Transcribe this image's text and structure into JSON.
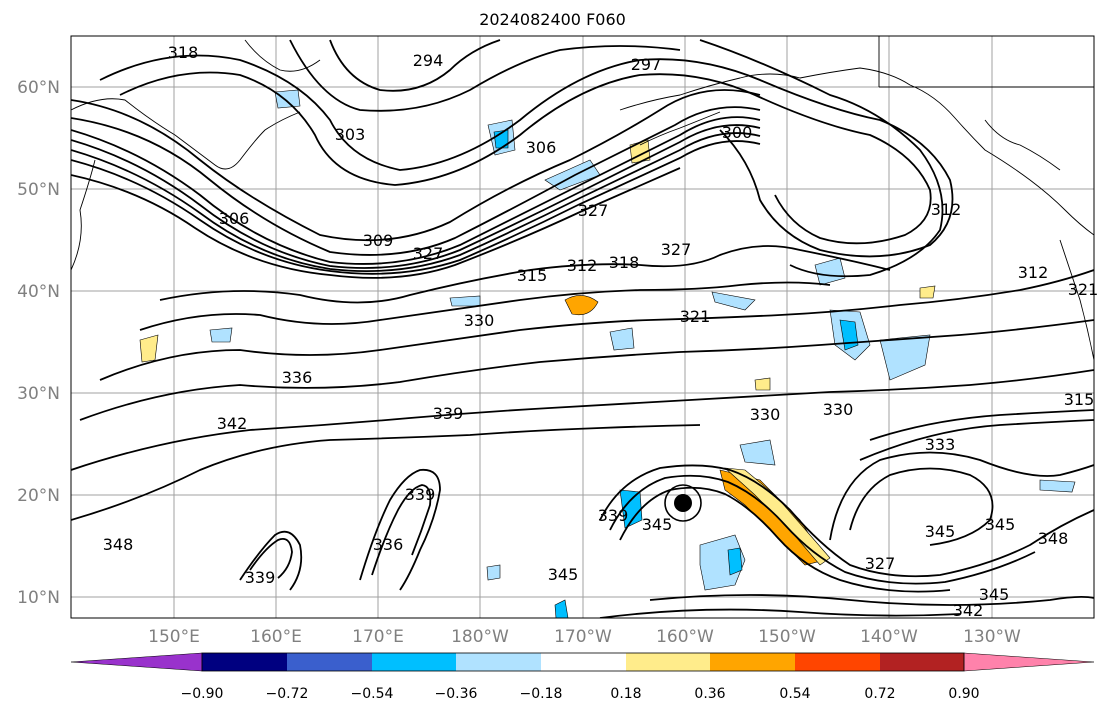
{
  "title": "2024082400 F060",
  "map": {
    "lat_labels": [
      "60°N",
      "50°N",
      "40°N",
      "30°N",
      "20°N",
      "10°N"
    ],
    "lon_labels": [
      "150°E",
      "160°E",
      "170°E",
      "180°W",
      "170°W",
      "160°W",
      "150°W",
      "140°W",
      "130°W"
    ],
    "contour_labels": [
      "318",
      "294",
      "297",
      "303",
      "300",
      "306",
      "309",
      "312",
      "315",
      "318",
      "321",
      "327",
      "330",
      "333",
      "336",
      "339",
      "342",
      "345",
      "348"
    ],
    "land_color": "#ffffff",
    "contour_color": "#000000",
    "grid_color": "#a0a0a0"
  },
  "colorbar": {
    "ticks": [
      "−0.90",
      "−0.72",
      "−0.54",
      "−0.36",
      "−0.18",
      "0.18",
      "0.36",
      "0.54",
      "0.72",
      "0.90"
    ],
    "colors": [
      "#9932cc",
      "#000080",
      "#3a5fcd",
      "#00bfff",
      "#b0e2ff",
      "#ffffff",
      "#ffec8b",
      "#ffa500",
      "#ff4500",
      "#b22222",
      "#ff82ab"
    ]
  }
}
